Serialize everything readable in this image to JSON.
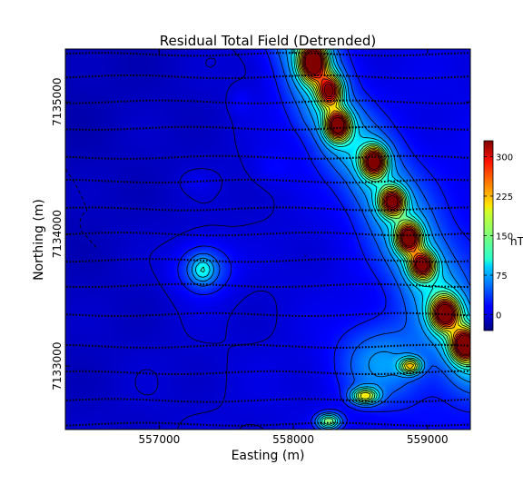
{
  "chart_data": {
    "type": "heatmap",
    "title": "Residual Total Field (Detrended)",
    "xlabel": "Easting (m)",
    "ylabel": "Northing (m)",
    "xlim": [
      556300,
      559320
    ],
    "ylim": [
      7132520,
      7135400
    ],
    "x_ticks": [
      {
        "value": 557000,
        "label": "557000"
      },
      {
        "value": 558000,
        "label": "558000"
      },
      {
        "value": 559000,
        "label": "559000"
      }
    ],
    "y_ticks": [
      {
        "value": 7133000,
        "label": "7133000"
      },
      {
        "value": 7134000,
        "label": "7134000"
      },
      {
        "value": 7135000,
        "label": "7135000"
      }
    ],
    "colorbar": {
      "label": "nT",
      "min": -30,
      "max": 330,
      "ticks": [
        {
          "value": 0,
          "label": "0"
        },
        {
          "value": 75,
          "label": "75"
        },
        {
          "value": 150,
          "label": "150"
        },
        {
          "value": 225,
          "label": "225"
        },
        {
          "value": 300,
          "label": "300"
        }
      ],
      "colormap": "jet"
    },
    "anomalies": [
      {
        "name": "isolated circular high",
        "easting": 557350,
        "northing": 7133830,
        "peak_nT": 110
      },
      {
        "name": "NW-SE linear ridge, north",
        "easting": 558050,
        "northing": 7135300,
        "peak_nT": 320
      },
      {
        "name": "NW-SE linear ridge, central",
        "easting": 558630,
        "northing": 7134400,
        "peak_nT": 320
      },
      {
        "name": "NW-SE linear ridge, south",
        "easting": 559100,
        "northing": 7133400,
        "peak_nT": 300
      }
    ],
    "flight_lines_northing": [
      7132560,
      7132740,
      7132950,
      7133150,
      7133390,
      7133610,
      7133800,
      7134000,
      7134190,
      7134400,
      7134580,
      7134800,
      7135000,
      7135190,
      7135360
    ]
  }
}
